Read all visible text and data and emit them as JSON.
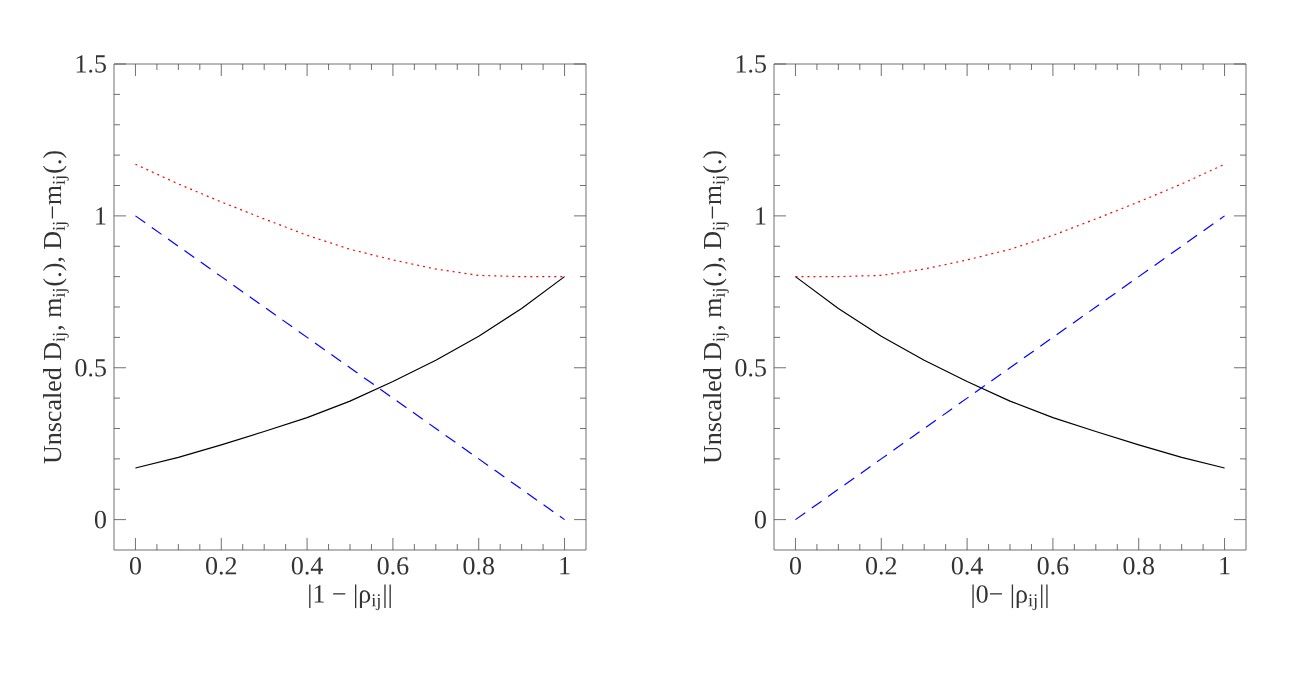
{
  "chart_data": [
    {
      "type": "line",
      "xlabel": "|1 − |ρ$_{ij}$||",
      "ylabel": "Unscaled D$_{ij}$, m$_{ij}$(.), D$_{ij}$−m$_{ij}$(.)",
      "x": [
        0,
        0.1,
        0.2,
        0.3,
        0.4,
        0.5,
        0.6,
        0.7,
        0.8,
        0.9,
        1
      ],
      "xlim": [
        -0.05,
        1.05
      ],
      "ylim": [
        -0.1,
        1.5
      ],
      "xticks": [
        0,
        0.2,
        0.4,
        0.6,
        0.8,
        1
      ],
      "yticks": [
        0,
        0.5,
        1,
        1.5
      ],
      "series": [
        {
          "color": "#000000",
          "line_style": "solid",
          "values": [
            0.17,
            0.205,
            0.246,
            0.29,
            0.336,
            0.39,
            0.455,
            0.525,
            0.604,
            0.695,
            0.8
          ]
        },
        {
          "color": "#0000ff",
          "line_style": "dashed",
          "values": [
            1,
            0.9,
            0.8,
            0.7,
            0.6,
            0.5,
            0.4,
            0.3,
            0.2,
            0.1,
            0
          ]
        },
        {
          "color": "#ff0000",
          "line_style": "dotted",
          "values": [
            1.17,
            1.105,
            1.046,
            0.99,
            0.936,
            0.89,
            0.855,
            0.825,
            0.804,
            0.8,
            0.8
          ]
        }
      ]
    },
    {
      "type": "line",
      "xlabel": "|0− |ρ$_{ij}$||",
      "ylabel": "Unscaled D$_{ij}$, m$_{ij}$(.), D$_{ij}$−m$_{ij}$(.)",
      "x": [
        0,
        0.1,
        0.2,
        0.3,
        0.4,
        0.5,
        0.6,
        0.7,
        0.8,
        0.9,
        1
      ],
      "xlim": [
        -0.05,
        1.05
      ],
      "ylim": [
        -0.1,
        1.5
      ],
      "xticks": [
        0,
        0.2,
        0.4,
        0.6,
        0.8,
        1
      ],
      "yticks": [
        0,
        0.5,
        1,
        1.5
      ],
      "series": [
        {
          "color": "#000000",
          "line_style": "solid",
          "values": [
            0.8,
            0.695,
            0.604,
            0.525,
            0.455,
            0.39,
            0.336,
            0.29,
            0.246,
            0.205,
            0.17
          ]
        },
        {
          "color": "#0000ff",
          "line_style": "dashed",
          "values": [
            0,
            0.1,
            0.2,
            0.3,
            0.4,
            0.5,
            0.6,
            0.7,
            0.8,
            0.9,
            1
          ]
        },
        {
          "color": "#ff0000",
          "line_style": "dotted",
          "values": [
            0.8,
            0.8,
            0.804,
            0.825,
            0.855,
            0.89,
            0.936,
            0.99,
            1.046,
            1.105,
            1.17
          ]
        }
      ]
    }
  ]
}
